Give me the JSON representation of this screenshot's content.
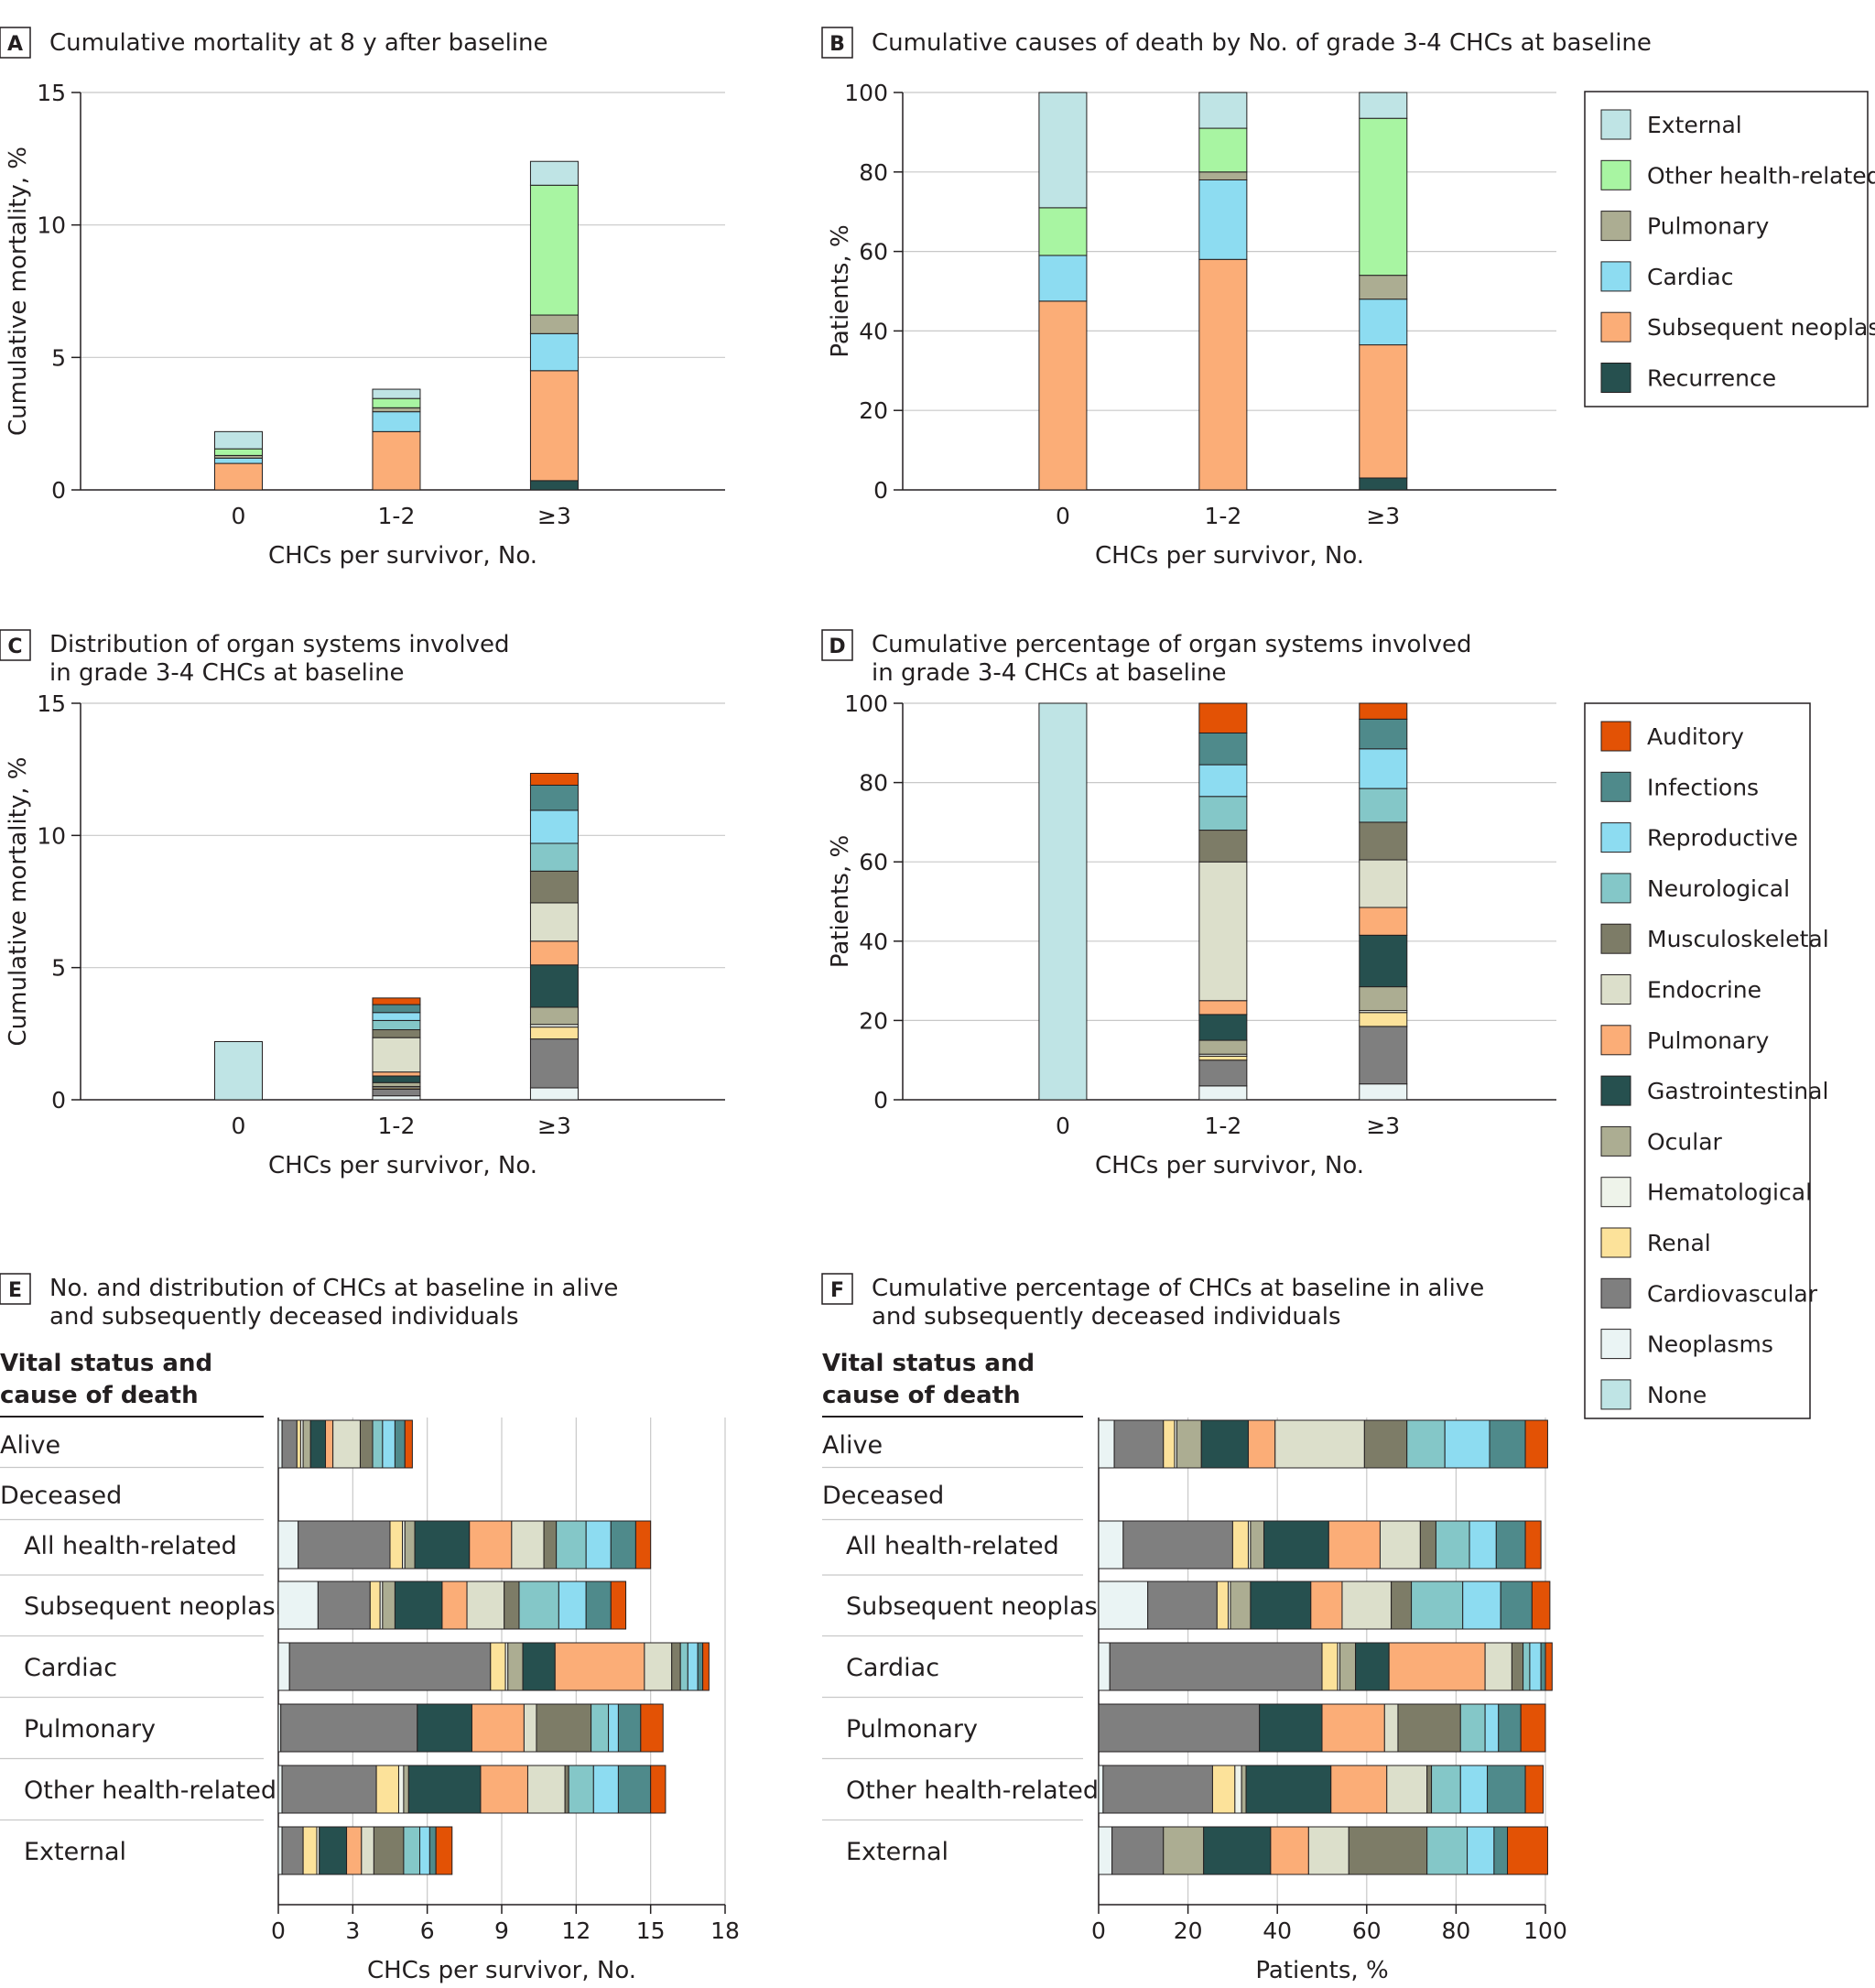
{
  "colors": {
    "External": "#bfe4e5",
    "Other health-related": "#a8f5a2",
    "Pulmonary": "#fbad77",
    "Cardiac": "#8ddcf1",
    "Subsequent neoplasm": "#fbad77",
    "Recurrence": "#26504f",
    "Auditory": "#e35205",
    "Infections": "#4f8a8b",
    "Reproductive": "#8ddcf1",
    "Neurological": "#84c7c8",
    "Musculoskeletal": "#7d7c67",
    "Endocrine": "#dcdfcb",
    "Gastrointestinal": "#26504f",
    "Ocular": "#acad92",
    "Hematological": "#eef3ea",
    "Renal": "#fce29a",
    "Cardiovascular": "#7f7f7f",
    "Neoplasms": "#eaf4f4",
    "None": "#bfe4e5",
    "PulmonaryCause": "#acad92"
  },
  "legend1": {
    "items": [
      "External",
      "Other health-related",
      "Pulmonary",
      "Cardiac",
      "Subsequent neoplasm",
      "Recurrence"
    ],
    "colors": [
      "#bfe4e5",
      "#a8f5a2",
      "#acad92",
      "#8ddcf1",
      "#fbad77",
      "#26504f"
    ]
  },
  "legend2": {
    "items": [
      "Auditory",
      "Infections",
      "Reproductive",
      "Neurological",
      "Musculoskeletal",
      "Endocrine",
      "Pulmonary",
      "Gastrointestinal",
      "Ocular",
      "Hematological",
      "Renal",
      "Cardiovascular",
      "Neoplasms",
      "None"
    ],
    "colors": [
      "#e35205",
      "#4f8a8b",
      "#8ddcf1",
      "#84c7c8",
      "#7d7c67",
      "#dcdfcb",
      "#fbad77",
      "#26504f",
      "#acad92",
      "#eef3ea",
      "#fce29a",
      "#7f7f7f",
      "#eaf4f4",
      "#bfe4e5"
    ]
  },
  "chart_data": [
    {
      "panel": "A",
      "type": "bar",
      "stacked": true,
      "title": "Cumulative mortality at 8 y after baseline",
      "xlabel": "CHCs per survivor, No.",
      "ylabel": "Cumulative mortality, %",
      "ylim": [
        0,
        15
      ],
      "yticks": [
        "0",
        "5",
        "10",
        "15"
      ],
      "categories": [
        "0",
        "1-2",
        "≥3"
      ],
      "series": [
        {
          "name": "Recurrence",
          "values": [
            0,
            0,
            0.35
          ]
        },
        {
          "name": "Subsequent neoplasm",
          "values": [
            1.0,
            2.2,
            4.15
          ]
        },
        {
          "name": "Cardiac",
          "values": [
            0.2,
            0.75,
            1.4
          ]
        },
        {
          "name": "Pulmonary",
          "values": [
            0.1,
            0.15,
            0.7
          ]
        },
        {
          "name": "Other health-related",
          "values": [
            0.25,
            0.35,
            4.9
          ]
        },
        {
          "name": "External",
          "values": [
            0.65,
            0.35,
            0.9
          ]
        }
      ]
    },
    {
      "panel": "B",
      "type": "bar",
      "stacked": true,
      "title": "Cumulative causes of death by No. of grade 3-4 CHCs at baseline",
      "xlabel": "CHCs per survivor, No.",
      "ylabel": "Patients, %",
      "ylim": [
        0,
        100
      ],
      "yticks": [
        "0",
        "20",
        "40",
        "60",
        "80",
        "100"
      ],
      "categories": [
        "0",
        "1-2",
        "≥3"
      ],
      "series": [
        {
          "name": "Recurrence",
          "values": [
            0,
            0,
            3
          ]
        },
        {
          "name": "Subsequent neoplasm",
          "values": [
            47.5,
            58,
            33.5
          ]
        },
        {
          "name": "Cardiac",
          "values": [
            11.5,
            20,
            11.5
          ]
        },
        {
          "name": "Pulmonary",
          "values": [
            0,
            2,
            6
          ]
        },
        {
          "name": "Other health-related",
          "values": [
            12,
            11,
            39.5
          ]
        },
        {
          "name": "External",
          "values": [
            29,
            9,
            6.5
          ]
        }
      ]
    },
    {
      "panel": "C",
      "type": "bar",
      "stacked": true,
      "title": "Distribution of organ systems involved",
      "title2": "in grade 3-4 CHCs at baseline",
      "xlabel": "CHCs per survivor, No.",
      "ylabel": "Cumulative mortality, %",
      "ylim": [
        0,
        15
      ],
      "yticks": [
        "0",
        "5",
        "10",
        "15"
      ],
      "categories": [
        "0",
        "1-2",
        "≥3"
      ],
      "series": [
        {
          "name": "None",
          "values": [
            2.2,
            0,
            0
          ]
        },
        {
          "name": "Neoplasms",
          "values": [
            0,
            0.15,
            0.45
          ]
        },
        {
          "name": "Cardiovascular",
          "values": [
            0,
            0.25,
            1.85
          ]
        },
        {
          "name": "Renal",
          "values": [
            0,
            0.05,
            0.45
          ]
        },
        {
          "name": "Hematological",
          "values": [
            0,
            0.05,
            0.1
          ]
        },
        {
          "name": "Ocular",
          "values": [
            0,
            0.15,
            0.65
          ]
        },
        {
          "name": "Gastrointestinal",
          "values": [
            0,
            0.25,
            1.6
          ]
        },
        {
          "name": "Pulmonary",
          "values": [
            0,
            0.15,
            0.9
          ]
        },
        {
          "name": "Endocrine",
          "values": [
            0,
            1.3,
            1.45
          ]
        },
        {
          "name": "Musculoskeletal",
          "values": [
            0,
            0.3,
            1.2
          ]
        },
        {
          "name": "Neurological",
          "values": [
            0,
            0.35,
            1.05
          ]
        },
        {
          "name": "Reproductive",
          "values": [
            0,
            0.3,
            1.25
          ]
        },
        {
          "name": "Infections",
          "values": [
            0,
            0.3,
            0.95
          ]
        },
        {
          "name": "Auditory",
          "values": [
            0,
            0.25,
            0.45
          ]
        }
      ]
    },
    {
      "panel": "D",
      "type": "bar",
      "stacked": true,
      "title": "Cumulative percentage of organ systems involved",
      "title2": "in grade 3-4 CHCs at baseline",
      "xlabel": "CHCs per survivor, No.",
      "ylabel": "Patients, %",
      "ylim": [
        0,
        100
      ],
      "yticks": [
        "0",
        "20",
        "40",
        "60",
        "80",
        "100"
      ],
      "categories": [
        "0",
        "1-2",
        "≥3"
      ],
      "series": [
        {
          "name": "None",
          "values": [
            100,
            0,
            0
          ]
        },
        {
          "name": "Neoplasms",
          "values": [
            0,
            3.5,
            4
          ]
        },
        {
          "name": "Cardiovascular",
          "values": [
            0,
            6.5,
            14.5
          ]
        },
        {
          "name": "Renal",
          "values": [
            0,
            1,
            3.5
          ]
        },
        {
          "name": "Hematological",
          "values": [
            0,
            0.5,
            0.5
          ]
        },
        {
          "name": "Ocular",
          "values": [
            0,
            3.5,
            6
          ]
        },
        {
          "name": "Gastrointestinal",
          "values": [
            0,
            6.5,
            13
          ]
        },
        {
          "name": "Pulmonary",
          "values": [
            0,
            3.5,
            7
          ]
        },
        {
          "name": "Endocrine",
          "values": [
            0,
            35,
            12
          ]
        },
        {
          "name": "Musculoskeletal",
          "values": [
            0,
            8,
            9.5
          ]
        },
        {
          "name": "Neurological",
          "values": [
            0,
            8.5,
            8.5
          ]
        },
        {
          "name": "Reproductive",
          "values": [
            0,
            8,
            10
          ]
        },
        {
          "name": "Infections",
          "values": [
            0,
            8,
            7.5
          ]
        },
        {
          "name": "Auditory",
          "values": [
            0,
            7.5,
            4
          ]
        }
      ]
    },
    {
      "panel": "E",
      "type": "bar",
      "orientation": "horizontal",
      "stacked": true,
      "title": "No. and distribution of CHCs at baseline in alive",
      "title2": "and subsequently deceased individuals",
      "xlabel": "CHCs per survivor, No.",
      "xlim": [
        0,
        18
      ],
      "xticks": [
        "0",
        "3",
        "6",
        "9",
        "12",
        "15",
        "18"
      ],
      "header": [
        "Vital status and",
        "cause of death"
      ],
      "rows": [
        "Alive",
        "Deceased",
        "All health-related",
        "Subsequent neoplasm",
        "Cardiac",
        "Pulmonary",
        "Other health-related",
        "External"
      ],
      "series_order": [
        "Neoplasms",
        "Cardiovascular",
        "Renal",
        "Hematological",
        "Ocular",
        "Gastrointestinal",
        "Pulmonary",
        "Endocrine",
        "Musculoskeletal",
        "Neurological",
        "Reproductive",
        "Infections",
        "Auditory"
      ],
      "values": [
        [
          0.15,
          0.6,
          0.15,
          0.1,
          0.3,
          0.6,
          0.3,
          1.1,
          0.5,
          0.4,
          0.5,
          0.4,
          0.3
        ],
        null,
        [
          0.8,
          3.7,
          0.5,
          0.1,
          0.4,
          2.2,
          1.7,
          1.3,
          0.5,
          1.2,
          1.0,
          1.0,
          0.6
        ],
        [
          1.6,
          2.1,
          0.4,
          0.1,
          0.5,
          1.9,
          1.0,
          1.5,
          0.6,
          1.6,
          1.1,
          1.0,
          0.6
        ],
        [
          0.45,
          8.1,
          0.6,
          0.1,
          0.6,
          1.3,
          3.6,
          1.1,
          0.35,
          0.3,
          0.4,
          0.2,
          0.25
        ],
        [
          0.1,
          5.5,
          0.0,
          0.0,
          0.0,
          2.2,
          2.1,
          0.5,
          2.2,
          0.7,
          0.4,
          0.9,
          0.9
        ],
        [
          0.15,
          3.8,
          0.9,
          0.2,
          0.2,
          2.9,
          1.9,
          1.5,
          0.15,
          1.0,
          1.0,
          1.3,
          0.6
        ],
        [
          0.15,
          0.85,
          0.55,
          0.1,
          0.0,
          1.1,
          0.6,
          0.5,
          1.2,
          0.65,
          0.4,
          0.25,
          0.65
        ]
      ]
    },
    {
      "panel": "F",
      "type": "bar",
      "orientation": "horizontal",
      "stacked": true,
      "title": "Cumulative percentage of CHCs at baseline in alive",
      "title2": "and subsequently deceased individuals",
      "xlabel": "Patients, %",
      "xlim": [
        0,
        100
      ],
      "xticks": [
        "0",
        "20",
        "40",
        "60",
        "80",
        "100"
      ],
      "header": [
        "Vital status and",
        "cause of death"
      ],
      "rows": [
        "Alive",
        "Deceased",
        "All health-related",
        "Subsequent neoplasm",
        "Cardiac",
        "Pulmonary",
        "Other health-related",
        "External"
      ],
      "series_order": [
        "Neoplasms",
        "Cardiovascular",
        "Renal",
        "Hematological",
        "Ocular",
        "Gastrointestinal",
        "Pulmonary",
        "Endocrine",
        "Musculoskeletal",
        "Neurological",
        "Reproductive",
        "Infections",
        "Auditory"
      ],
      "values": [
        [
          3.5,
          11,
          2.5,
          0.5,
          5.5,
          10.5,
          6,
          20,
          9.5,
          8.5,
          10,
          8,
          5
        ],
        null,
        [
          5.5,
          24.5,
          3.5,
          0.5,
          3,
          14.5,
          11.5,
          9,
          3.5,
          7.5,
          6,
          6.5,
          3.5
        ],
        [
          11,
          15.5,
          2.5,
          0.5,
          4.5,
          13.5,
          7,
          11,
          4.5,
          11.5,
          8.5,
          7,
          4
        ],
        [
          2.5,
          47.5,
          3.5,
          0.5,
          3.5,
          7.5,
          21.5,
          6,
          2.5,
          1.5,
          2.5,
          1,
          1.5
        ],
        [
          0,
          36,
          0,
          0,
          0,
          14,
          14,
          3,
          14,
          5.5,
          3,
          5,
          5.5
        ],
        [
          1,
          24.5,
          5,
          1.5,
          1,
          19,
          12.5,
          9,
          1,
          6.5,
          6,
          8.5,
          4
        ],
        [
          3,
          11.5,
          0,
          0,
          9,
          15,
          8.5,
          9,
          17.5,
          9,
          6,
          3,
          9
        ]
      ]
    }
  ]
}
